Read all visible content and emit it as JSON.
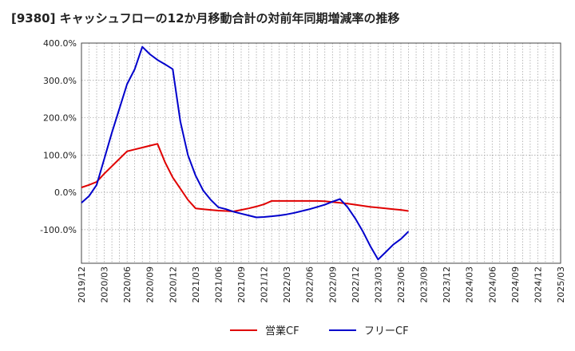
{
  "chart_data": {
    "type": "line",
    "title": "[9380]  キャッシュフローの12か月移動合計の対前年同期増減率の推移",
    "ylim": [
      -190,
      400
    ],
    "yticks": [
      400,
      300,
      200,
      100,
      0,
      -100
    ],
    "ytick_labels": [
      "400.0%",
      "300.0%",
      "200.0%",
      "100.0%",
      "0.0%",
      "-100.0%"
    ],
    "xticks": [
      "2019/12",
      "2020/03",
      "2020/06",
      "2020/09",
      "2020/12",
      "2021/03",
      "2021/06",
      "2021/09",
      "2021/12",
      "2022/03",
      "2022/06",
      "2022/09",
      "2022/12",
      "2023/03",
      "2023/06",
      "2023/09",
      "2023/12",
      "2024/03",
      "2024/06",
      "2024/09",
      "2024/12",
      "2025/03"
    ],
    "grid": true,
    "legend_position": "bottom-center",
    "series": [
      {
        "name": "営業CF",
        "color": "#e00000",
        "x": [
          0,
          1,
          2,
          3,
          4,
          5,
          6,
          7,
          8,
          9,
          10,
          11,
          12,
          13,
          14,
          15,
          16,
          17,
          18,
          19,
          20,
          21,
          22,
          23,
          24,
          25,
          26,
          27,
          28,
          29,
          30,
          31,
          32,
          33,
          34,
          35,
          36,
          37,
          38,
          39,
          40,
          41,
          42,
          43,
          44,
          45,
          46,
          47,
          48,
          49,
          50,
          51,
          52,
          53
        ],
        "values": [
          13,
          20,
          28,
          50,
          70,
          90,
          110,
          115,
          120,
          125,
          130,
          80,
          40,
          10,
          -20,
          -43,
          -45,
          -47,
          -49,
          -50,
          -51,
          -47,
          -43,
          -38,
          -32,
          -23,
          -23,
          -23,
          -23,
          -23,
          -23,
          -23,
          -24,
          -26,
          -28,
          -30,
          -33,
          -36,
          -39,
          -41,
          -43,
          -45,
          -47,
          -50,
          null,
          null,
          null,
          null,
          null,
          null,
          null,
          null,
          null,
          null
        ]
      },
      {
        "name": "フリーCF",
        "color": "#0000cc",
        "x": [
          0,
          1,
          2,
          3,
          4,
          5,
          6,
          7,
          8,
          9,
          10,
          11,
          12,
          13,
          14,
          15,
          16,
          17,
          18,
          19,
          20,
          21,
          22,
          23,
          24,
          25,
          26,
          27,
          28,
          29,
          30,
          31,
          32,
          33,
          34,
          35,
          36,
          37,
          38,
          39,
          40,
          41,
          42,
          43
        ],
        "values": [
          -28,
          -10,
          20,
          90,
          160,
          225,
          290,
          330,
          390,
          370,
          355,
          343,
          330,
          190,
          100,
          45,
          5,
          -20,
          -40,
          -45,
          -52,
          -57,
          -62,
          -67,
          -66,
          -64,
          -62,
          -59,
          -55,
          -50,
          -45,
          -39,
          -33,
          -25,
          -18,
          -40,
          -70,
          -105,
          -145,
          -180,
          -160,
          -140,
          -125,
          -105
        ]
      }
    ]
  }
}
